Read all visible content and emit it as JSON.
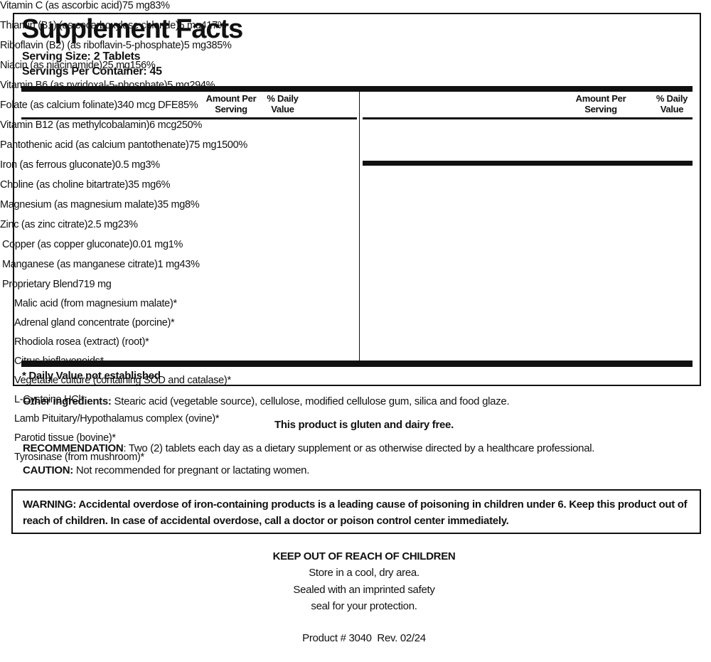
{
  "title": "Supplement Facts",
  "serving_size": "Serving Size: 2 Tablets",
  "servings_per_container": "Servings Per Container: 45",
  "left_table": {
    "header": [
      "Amount Per Serving",
      "% Daily Value"
    ],
    "rows": [
      [
        "Vitamin C (as ascorbic acid)",
        "75 mg",
        "83%"
      ],
      [
        "Thiamin (B1) (as cocarboxylase chloride)",
        "5 mg",
        "417%"
      ],
      [
        "Riboflavin (B2) (as riboflavin-5-phosphate)",
        "5 mg",
        "385%"
      ],
      [
        "Niacin (as niacinamide)",
        "25 mg",
        "156%"
      ],
      [
        "Vitamin B6 (as pyridoxal-5-phosphate)",
        "5 mg",
        "294%"
      ],
      [
        "Folate (as calcium folinate)",
        "340 mcg DFE",
        "85%"
      ],
      [
        "Vitamin B12 (as methylcobalamin)",
        "6 mcg",
        "250%"
      ],
      [
        "Pantothenic acid (as calcium pantothenate)",
        "75 mg",
        "1500%"
      ],
      [
        "Iron (as ferrous gluconate)",
        "0.5 mg",
        "3%"
      ],
      [
        "Choline (as choline bitartrate)",
        "35 mg",
        "6%"
      ],
      [
        "Magnesium (as magnesium malate)",
        "35 mg",
        "8%"
      ],
      [
        "Zinc (as zinc citrate)",
        "2.5 mg",
        "23%"
      ]
    ]
  },
  "right_table": {
    "header": [
      "Amount Per Serving",
      "% Daily Value"
    ],
    "rows": [
      [
        "Copper (as copper gluconate)",
        "0.01 mg",
        "1%"
      ],
      [
        "Manganese (as manganese citrate)",
        "1 mg",
        "43%"
      ]
    ],
    "blend": [
      "Proprietary Blend",
      "719 mg"
    ],
    "blend_rows": [
      [
        "Malic acid (from magnesium malate)",
        "*"
      ],
      [
        "Adrenal gland concentrate (porcine)",
        "*"
      ],
      [
        "Rhodiola rosea (extract) (root)",
        "*"
      ],
      [
        "Citrus bioflavonoids",
        "*"
      ],
      [
        "Vegetable culture (containing SOD and catalase)",
        "*"
      ],
      [
        "L-Cysteine HCl",
        "*"
      ],
      [
        "Lamb Pituitary/Hypothalamus complex (ovine)",
        "*"
      ],
      [
        "Parotid tissue (bovine)",
        "*"
      ],
      [
        "Tyrosinase (from mushroom)",
        "*"
      ]
    ]
  },
  "footnote": "* Daily Value not established",
  "other_ingredients": {
    "label": "Other ingredients:",
    "text": "Stearic acid (vegetable source), cellulose, modified cellulose gum, silica and food glaze."
  },
  "gluten_statement": "This product is gluten and dairy free.",
  "recommendation": {
    "label": "RECOMMENDATION",
    "text": ": Two (2) tablets each day as a dietary supplement or as otherwise directed by a healthcare professional."
  },
  "caution": {
    "label": "CAUTION:",
    "text": "Not recommended for pregnant or lactating women."
  },
  "warning": "WARNING: Accidental overdose of iron-containing products is a leading cause of poisoning in children under 6. Keep this product out of reach of children. In case of accidental overdose, call a doctor or poison control center immediately.",
  "keep_out": "KEEP OUT OF REACH OF CHILDREN",
  "storage": [
    "Store in a cool, dry area.",
    "Sealed with an imprinted safety",
    "seal for your protection."
  ],
  "product": "Product # 3040  Rev. 02/24"
}
